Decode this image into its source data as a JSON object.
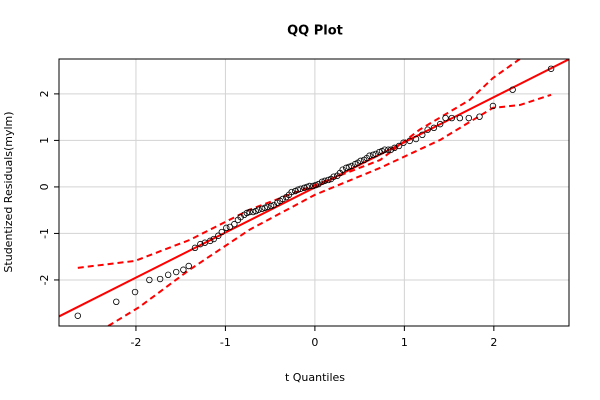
{
  "chart_data": {
    "type": "qq",
    "title": "QQ Plot",
    "x_label": "t Quantiles",
    "y_label": "Studentized Residuals(mylm)",
    "xlim": [
      -2.86,
      2.84
    ],
    "ylim": [
      -2.99,
      2.75
    ],
    "xticks": [
      -2,
      -1,
      0,
      1,
      2
    ],
    "yticks": [
      -2,
      -1,
      0,
      1,
      2
    ],
    "grid": true,
    "point_color": "#000000",
    "line_color": "#ff0000",
    "points": {
      "x": [
        -2.65,
        -2.22,
        -2.01,
        -1.85,
        -1.73,
        -1.64,
        -1.55,
        -1.47,
        -1.41,
        -1.34,
        -1.28,
        -1.23,
        -1.17,
        -1.13,
        -1.08,
        -1.04,
        -0.99,
        -0.95,
        -0.9,
        -0.86,
        -0.83,
        -0.79,
        -0.76,
        -0.73,
        -0.69,
        -0.66,
        -0.63,
        -0.59,
        -0.56,
        -0.53,
        -0.49,
        -0.46,
        -0.42,
        -0.39,
        -0.36,
        -0.32,
        -0.29,
        -0.26,
        -0.22,
        -0.19,
        -0.16,
        -0.12,
        -0.09,
        -0.06,
        -0.02,
        0.01,
        0.04,
        0.08,
        0.11,
        0.15,
        0.18,
        0.21,
        0.25,
        0.28,
        0.31,
        0.35,
        0.38,
        0.41,
        0.45,
        0.48,
        0.51,
        0.55,
        0.58,
        0.61,
        0.65,
        0.68,
        0.72,
        0.75,
        0.78,
        0.82,
        0.85,
        0.89,
        0.94,
        0.99,
        1.06,
        1.13,
        1.2,
        1.26,
        1.33,
        1.4,
        1.46,
        1.53,
        1.62,
        1.72,
        1.84,
        1.99,
        2.21,
        2.64
      ],
      "y": [
        -2.77,
        -2.47,
        -2.26,
        -2.0,
        -1.98,
        -1.89,
        -1.83,
        -1.78,
        -1.7,
        -1.31,
        -1.23,
        -1.2,
        -1.16,
        -1.12,
        -1.05,
        -0.97,
        -0.88,
        -0.86,
        -0.8,
        -0.71,
        -0.65,
        -0.6,
        -0.56,
        -0.54,
        -0.54,
        -0.52,
        -0.49,
        -0.47,
        -0.45,
        -0.43,
        -0.41,
        -0.39,
        -0.34,
        -0.3,
        -0.26,
        -0.22,
        -0.17,
        -0.11,
        -0.09,
        -0.06,
        -0.04,
        -0.02,
        0.0,
        0.02,
        0.02,
        0.04,
        0.06,
        0.11,
        0.13,
        0.15,
        0.17,
        0.22,
        0.24,
        0.3,
        0.37,
        0.41,
        0.43,
        0.45,
        0.49,
        0.52,
        0.56,
        0.58,
        0.62,
        0.67,
        0.69,
        0.71,
        0.75,
        0.77,
        0.8,
        0.8,
        0.8,
        0.84,
        0.88,
        0.95,
        0.99,
        1.03,
        1.12,
        1.23,
        1.27,
        1.35,
        1.48,
        1.48,
        1.48,
        1.48,
        1.51,
        1.74,
        2.09,
        2.54
      ]
    },
    "reference_line": {
      "intercept": -0.01,
      "slope": 0.97
    },
    "confidence_upper": {
      "x": [
        -2.65,
        -2.01,
        -1.4,
        -0.73,
        0,
        0.73,
        1.17,
        1.73,
        1.99,
        2.29
      ],
      "y": [
        -1.74,
        -1.59,
        -1.14,
        -0.49,
        0.04,
        0.58,
        1.23,
        1.87,
        2.34,
        2.75
      ]
    },
    "confidence_lower": {
      "x": [
        -2.31,
        -1.96,
        -1.4,
        -0.73,
        0,
        0.73,
        1.4,
        1.99,
        2.29,
        2.64
      ],
      "y": [
        -2.99,
        -2.58,
        -1.78,
        -0.92,
        -0.17,
        0.41,
        1.01,
        1.7,
        1.76,
        1.98
      ]
    }
  }
}
